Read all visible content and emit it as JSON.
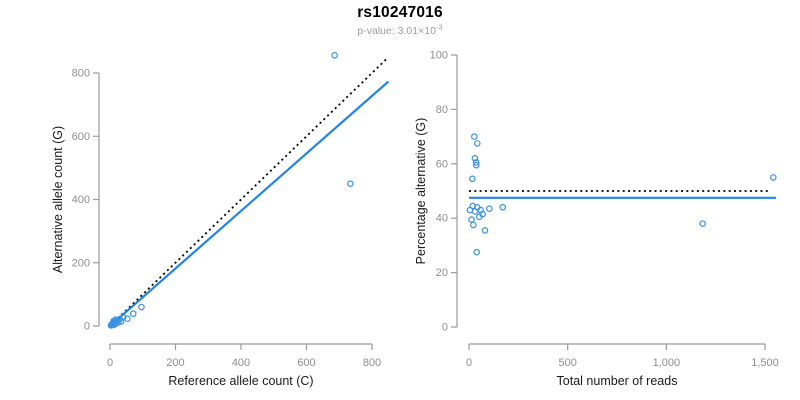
{
  "header": {
    "title": "rs10247016",
    "p_value_text": "p-value: 3.01×10",
    "p_value_exponent": "-3"
  },
  "colors": {
    "point": "#3a93e0",
    "fit_line": "#1f83e8",
    "reference_line": "#000000",
    "axis": "#9a9a9a",
    "tick_label": "#8e8e8e",
    "axis_title": "#1a1a1a",
    "subtitle": "#9b9b9b"
  },
  "chart_data": [
    {
      "id": "allele-counts-scatter",
      "type": "scatter",
      "title": "",
      "xlabel": "Reference allele count (C)",
      "ylabel": "Alternative allele count (G)",
      "xlim": [
        0,
        850
      ],
      "ylim": [
        0,
        870
      ],
      "xticks": [
        0,
        200,
        400,
        600,
        800
      ],
      "xtick_labels": [
        "0",
        "200",
        "400",
        "600",
        "800"
      ],
      "yticks": [
        0,
        200,
        400,
        600,
        800
      ],
      "ytick_labels": [
        "0",
        "200",
        "400",
        "600",
        "800"
      ],
      "grid": false,
      "legend": null,
      "marker": "open-circle",
      "points": [
        [
          3,
          2
        ],
        [
          5,
          5
        ],
        [
          7,
          3
        ],
        [
          8,
          6
        ],
        [
          9,
          10
        ],
        [
          12,
          4
        ],
        [
          13,
          9
        ],
        [
          11,
          16
        ],
        [
          15,
          13
        ],
        [
          17,
          20
        ],
        [
          19,
          8
        ],
        [
          22,
          17
        ],
        [
          26,
          12
        ],
        [
          30,
          22
        ],
        [
          34,
          14
        ],
        [
          40,
          28
        ],
        [
          53,
          23
        ],
        [
          71,
          39
        ],
        [
          96,
          60
        ],
        [
          734,
          450
        ],
        [
          686,
          856
        ]
      ],
      "lines": [
        {
          "name": "identity-line",
          "style": "dotted",
          "color_key": "reference_line",
          "x": [
            0,
            845
          ],
          "y": [
            0,
            845
          ]
        },
        {
          "name": "fit-line",
          "style": "solid",
          "color_key": "fit_line",
          "x": [
            0,
            850
          ],
          "y": [
            0,
            773
          ]
        }
      ]
    },
    {
      "id": "percentage-vs-reads-scatter",
      "type": "scatter",
      "title": "",
      "xlabel": "Total number of reads",
      "ylabel": "Percentage alternative (G)",
      "xlim": [
        0,
        1560
      ],
      "ylim": [
        0,
        100
      ],
      "xticks": [
        0,
        500,
        1000,
        1500
      ],
      "xtick_labels": [
        "0",
        "500",
        "1,000",
        "1,500"
      ],
      "yticks": [
        0,
        20,
        40,
        60,
        80,
        100
      ],
      "ytick_labels": [
        "0",
        "20",
        "40",
        "60",
        "80",
        "100"
      ],
      "grid": false,
      "legend": null,
      "marker": "open-circle",
      "points": [
        [
          27,
          70
        ],
        [
          42,
          67.5
        ],
        [
          30,
          62
        ],
        [
          36,
          60.5
        ],
        [
          37,
          59.5
        ],
        [
          17,
          54.5
        ],
        [
          19,
          44.5
        ],
        [
          42,
          44
        ],
        [
          5,
          43
        ],
        [
          30,
          42.5
        ],
        [
          59,
          43
        ],
        [
          103,
          43.5
        ],
        [
          171,
          44
        ],
        [
          69,
          41.5
        ],
        [
          52,
          40.5
        ],
        [
          13,
          39.5
        ],
        [
          22,
          37.5
        ],
        [
          81,
          35.5
        ],
        [
          39,
          27.5
        ],
        [
          1184,
          38
        ],
        [
          1542,
          55
        ]
      ],
      "lines": [
        {
          "name": "expected-50pct-line",
          "style": "dotted",
          "color_key": "reference_line",
          "x": [
            0,
            1515
          ],
          "y": [
            50,
            50
          ]
        },
        {
          "name": "fit-line",
          "style": "solid",
          "color_key": "fit_line",
          "x": [
            0,
            1556
          ],
          "y": [
            47.5,
            47.5
          ]
        }
      ]
    }
  ]
}
